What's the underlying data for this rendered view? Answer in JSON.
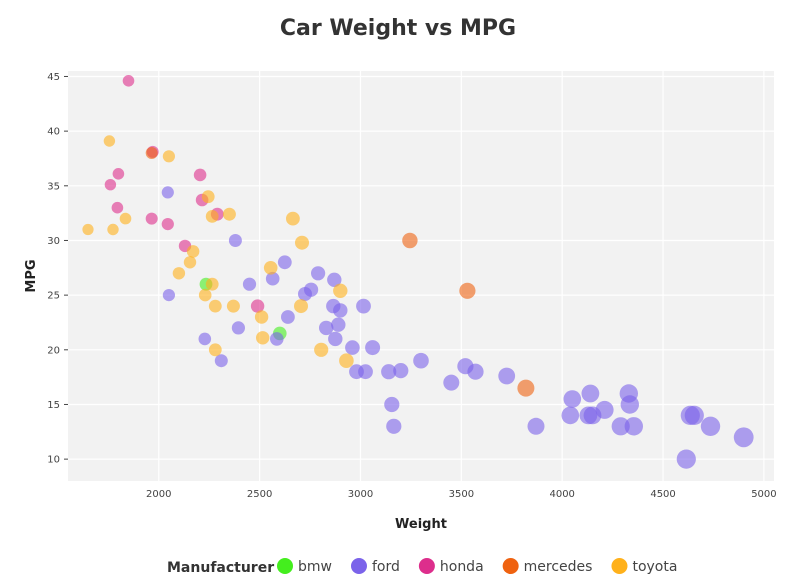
{
  "chart_data": {
    "type": "scatter",
    "title": "Car Weight vs MPG",
    "xlabel": "Weight",
    "ylabel": "MPG",
    "xlim": [
      1550,
      5050
    ],
    "ylim": [
      8,
      45.5
    ],
    "xticks": [
      2000,
      2500,
      3000,
      3500,
      4000,
      4500,
      5000
    ],
    "yticks": [
      10,
      15,
      20,
      25,
      30,
      35,
      40,
      45
    ],
    "grid": true,
    "legend": {
      "title": "Manufacturer",
      "placement": "bottom"
    },
    "colors": {
      "bmw": "#44ee1e",
      "ford": "#7b63ea",
      "honda": "#dd2e8c",
      "mercedes": "#ef6210",
      "toyota": "#ffb11b"
    },
    "series": [
      {
        "name": "bmw",
        "points": [
          [
            2234,
            26
          ],
          [
            2600,
            21.5
          ]
        ]
      },
      {
        "name": "ford",
        "points": [
          [
            2045,
            34.4
          ],
          [
            2050,
            25
          ],
          [
            2228,
            21
          ],
          [
            2310,
            19
          ],
          [
            2380,
            30
          ],
          [
            2395,
            22
          ],
          [
            2450,
            26
          ],
          [
            2565,
            26.5
          ],
          [
            2585,
            21
          ],
          [
            2625,
            28
          ],
          [
            2640,
            23
          ],
          [
            2725,
            25.1
          ],
          [
            2755,
            25.5
          ],
          [
            2790,
            27
          ],
          [
            2830,
            22
          ],
          [
            2865,
            24
          ],
          [
            2870,
            26.4
          ],
          [
            2875,
            21
          ],
          [
            2890,
            22.3
          ],
          [
            2900,
            23.6
          ],
          [
            2960,
            20.2
          ],
          [
            2980,
            18
          ],
          [
            3015,
            24
          ],
          [
            3025,
            18
          ],
          [
            3060,
            20.2
          ],
          [
            3140,
            18
          ],
          [
            3155,
            15
          ],
          [
            3165,
            13
          ],
          [
            3200,
            18.1
          ],
          [
            3300,
            19
          ],
          [
            3450,
            17
          ],
          [
            3520,
            18.5
          ],
          [
            3570,
            18
          ],
          [
            3725,
            17.6
          ],
          [
            3870,
            13
          ],
          [
            4040,
            14
          ],
          [
            4050,
            15.5
          ],
          [
            4130,
            14
          ],
          [
            4140,
            16
          ],
          [
            4150,
            14
          ],
          [
            4210,
            14.5
          ],
          [
            4290,
            13
          ],
          [
            4330,
            16
          ],
          [
            4335,
            15
          ],
          [
            4355,
            13
          ],
          [
            4615,
            10
          ],
          [
            4635,
            14
          ],
          [
            4655,
            14
          ],
          [
            4735,
            13
          ],
          [
            4900,
            12
          ]
        ]
      },
      {
        "name": "honda",
        "points": [
          [
            1760,
            35.1
          ],
          [
            1795,
            33
          ],
          [
            1800,
            36.1
          ],
          [
            1850,
            44.6
          ],
          [
            1965,
            32
          ],
          [
            1970,
            38.1
          ],
          [
            2045,
            31.5
          ],
          [
            2130,
            29.5
          ],
          [
            2205,
            36
          ],
          [
            2215,
            33.7
          ],
          [
            2290,
            32.4
          ],
          [
            2490,
            24
          ]
        ]
      },
      {
        "name": "mercedes",
        "points": [
          [
            1965,
            38
          ],
          [
            3245,
            30
          ],
          [
            3530,
            25.4
          ],
          [
            3820,
            16.5
          ]
        ]
      },
      {
        "name": "toyota",
        "points": [
          [
            1649,
            31
          ],
          [
            1755,
            39.1
          ],
          [
            1773,
            31
          ],
          [
            1835,
            32
          ],
          [
            2050,
            37.7
          ],
          [
            2100,
            27
          ],
          [
            2155,
            28
          ],
          [
            2170,
            29
          ],
          [
            2230,
            25
          ],
          [
            2245,
            34
          ],
          [
            2265,
            32.2
          ],
          [
            2265,
            26
          ],
          [
            2280,
            24
          ],
          [
            2280,
            20
          ],
          [
            2350,
            32.4
          ],
          [
            2370,
            24
          ],
          [
            2510,
            23
          ],
          [
            2515,
            21.1
          ],
          [
            2555,
            27.5
          ],
          [
            2665,
            32
          ],
          [
            2705,
            24
          ],
          [
            2710,
            29.8
          ],
          [
            2805,
            20
          ],
          [
            2900,
            25.4
          ],
          [
            2930,
            19
          ]
        ]
      }
    ]
  }
}
